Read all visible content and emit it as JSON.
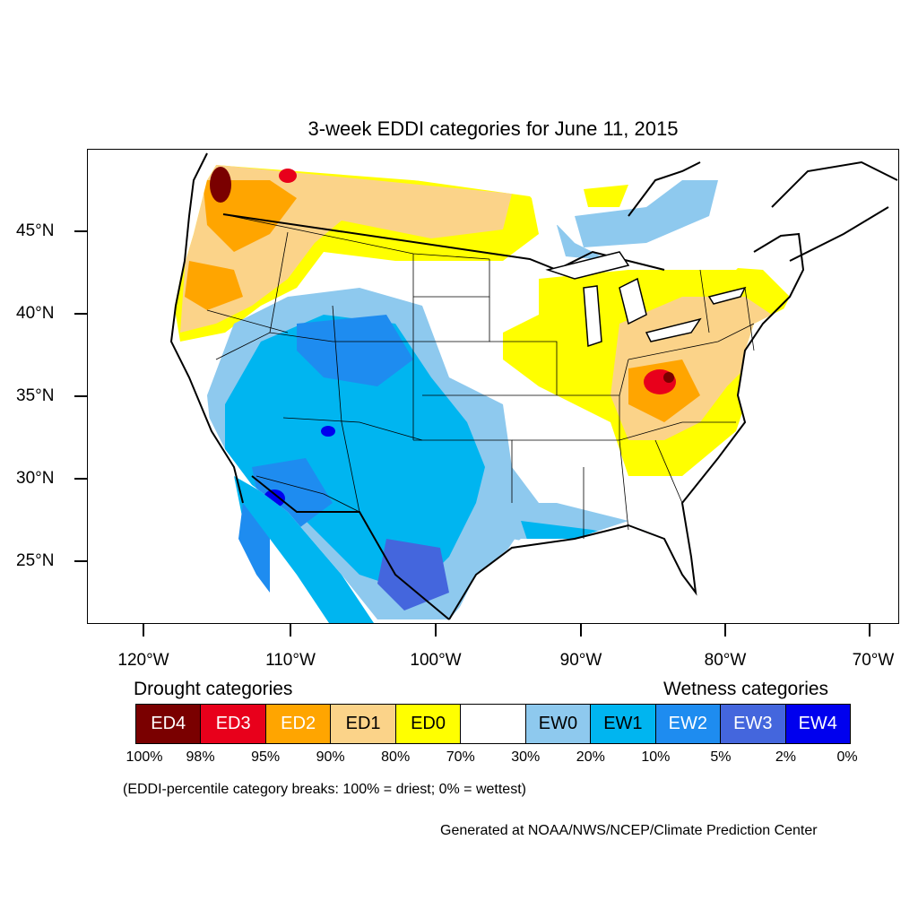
{
  "title": "3-week EDDI categories for June 11, 2015",
  "lat_axis": [
    "45°N",
    "40°N",
    "35°N",
    "30°N",
    "25°N"
  ],
  "lon_axis": [
    "120°W",
    "110°W",
    "100°W",
    "90°W",
    "80°W",
    "70°W"
  ],
  "legend": {
    "drought_heading": "Drought categories",
    "wetness_heading": "Wetness categories",
    "categories": [
      {
        "label": "ED4",
        "color": "#7a0000",
        "text_color": "#ffffff"
      },
      {
        "label": "ED3",
        "color": "#e8001b",
        "text_color": "#ffffff"
      },
      {
        "label": "ED2",
        "color": "#ffa500",
        "text_color": "#ffffff"
      },
      {
        "label": "ED1",
        "color": "#fbd389",
        "text_color": "#000000"
      },
      {
        "label": "ED0",
        "color": "#ffff00",
        "text_color": "#000000"
      },
      {
        "label": "",
        "color": "#ffffff",
        "text_color": "#000000"
      },
      {
        "label": "EW0",
        "color": "#8ec9ee",
        "text_color": "#000000"
      },
      {
        "label": "EW1",
        "color": "#00b5f0",
        "text_color": "#000000"
      },
      {
        "label": "EW2",
        "color": "#1e8cf0",
        "text_color": "#ffffff"
      },
      {
        "label": "EW3",
        "color": "#4466dd",
        "text_color": "#ffffff"
      },
      {
        "label": "EW4",
        "color": "#0000ee",
        "text_color": "#ffffff"
      }
    ],
    "percentiles": [
      "100%",
      "98%",
      "95%",
      "90%",
      "80%",
      "70%",
      "30%",
      "20%",
      "10%",
      "5%",
      "2%",
      "0%"
    ]
  },
  "note": "(EDDI-percentile category breaks: 100% = driest; 0% = wettest)",
  "credit": "Generated at NOAA/NWS/NCEP/Climate Prediction Center"
}
